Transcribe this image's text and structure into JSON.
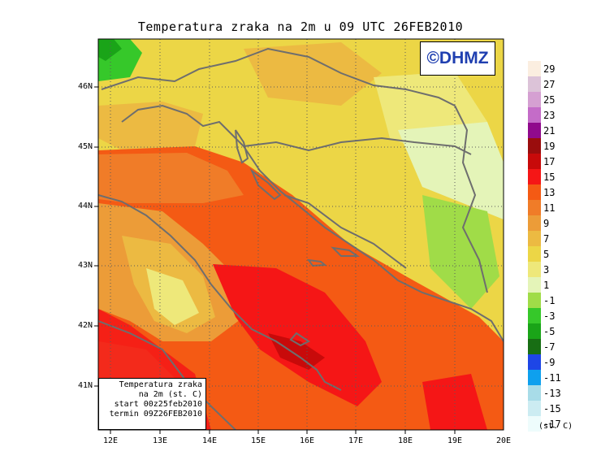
{
  "title": "Temperatura zraka na 2m u 09 UTC 26FEB2010",
  "logo_text": "©DHMZ",
  "info_box": [
    "Temperatura zraka",
    "na 2m (st. C)",
    "start 00z25feb2010",
    "termin 09Z26FEB2010"
  ],
  "lat_labels": [
    "46N",
    "45N",
    "44N",
    "43N",
    "42N",
    "41N"
  ],
  "lon_labels": [
    "12E",
    "13E",
    "14E",
    "15E",
    "16E",
    "17E",
    "18E",
    "19E",
    "20E"
  ],
  "legend": {
    "unit": "(st. C)",
    "items": [
      {
        "label": "29",
        "color": "#fbeee0"
      },
      {
        "label": "27",
        "color": "#dcc3d8"
      },
      {
        "label": "25",
        "color": "#d5a0d2"
      },
      {
        "label": "23",
        "color": "#c46cc8"
      },
      {
        "label": "21",
        "color": "#900a8c"
      },
      {
        "label": "19",
        "color": "#9a0d0d"
      },
      {
        "label": "17",
        "color": "#c80a0a"
      },
      {
        "label": "15",
        "color": "#f51616"
      },
      {
        "label": "13",
        "color": "#f45a14"
      },
      {
        "label": "11",
        "color": "#f07c28"
      },
      {
        "label": "9",
        "color": "#ec9c38"
      },
      {
        "label": "7",
        "color": "#ecba42"
      },
      {
        "label": "5",
        "color": "#ecd646"
      },
      {
        "label": "3",
        "color": "#eee87a"
      },
      {
        "label": "1",
        "color": "#e4f4b8"
      },
      {
        "label": "-1",
        "color": "#a0dc48"
      },
      {
        "label": "-3",
        "color": "#36c82a"
      },
      {
        "label": "-5",
        "color": "#1aa418"
      },
      {
        "label": "-7",
        "color": "#186e14"
      },
      {
        "label": "-9",
        "color": "#1e46e6"
      },
      {
        "label": "-11",
        "color": "#0ea0ee"
      },
      {
        "label": "-13",
        "color": "#a8dce8"
      },
      {
        "label": "-15",
        "color": "#ccecf2"
      },
      {
        "label": "-17",
        "color": "#eefcfc"
      }
    ]
  }
}
